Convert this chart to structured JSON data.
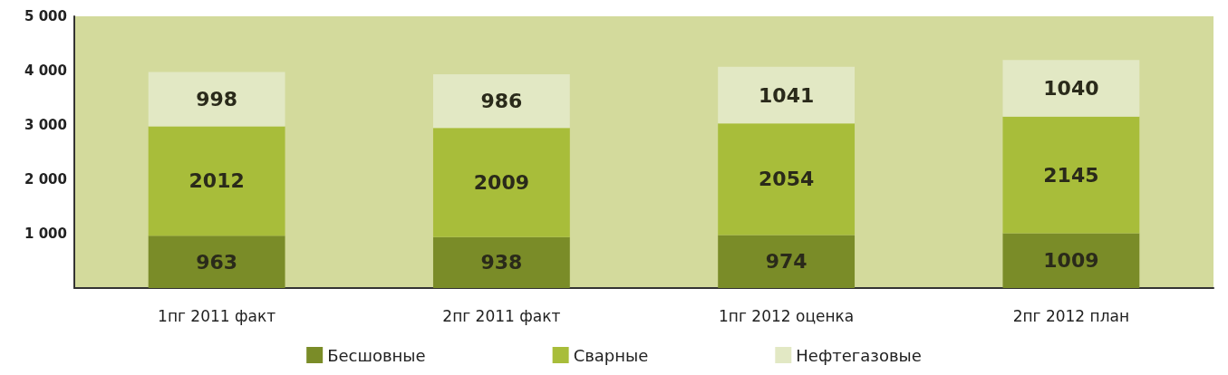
{
  "chart_data": {
    "type": "bar",
    "stacked": true,
    "data_labels": true,
    "legend": "bottom",
    "grid": false,
    "categories": [
      "1пг 2011 факт",
      "2пг 2011 факт",
      "1пг 2012 оценка",
      "2пг 2012 план"
    ],
    "series": [
      {
        "name": "Бесшовные",
        "color": "#7a8c28",
        "values": [
          963,
          938,
          974,
          1009
        ]
      },
      {
        "name": "Сварные",
        "color": "#a8bd3a",
        "values": [
          2012,
          2009,
          2054,
          2145
        ]
      },
      {
        "name": "Нефтегазовые",
        "color": "#e2e8c4",
        "values": [
          998,
          986,
          1041,
          1040
        ]
      }
    ],
    "ylim": [
      0,
      5000
    ],
    "yticks": [
      {
        "value": 1000,
        "label": "1 000"
      },
      {
        "value": 2000,
        "label": "2 000"
      },
      {
        "value": 3000,
        "label": "3 000"
      },
      {
        "value": 4000,
        "label": "4 000"
      },
      {
        "value": 5000,
        "label": "5 000"
      }
    ]
  }
}
